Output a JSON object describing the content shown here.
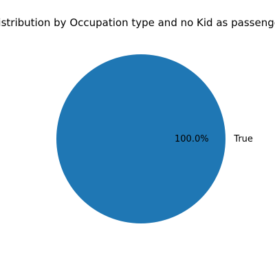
{
  "chart_data": {
    "type": "pie",
    "title": "Distribution by Occupation type and no Kid as passenger",
    "labels": [
      "True"
    ],
    "values": [
      100.0
    ],
    "percent_labels": [
      "100.0%"
    ],
    "colors": [
      "#1f77b4"
    ]
  }
}
